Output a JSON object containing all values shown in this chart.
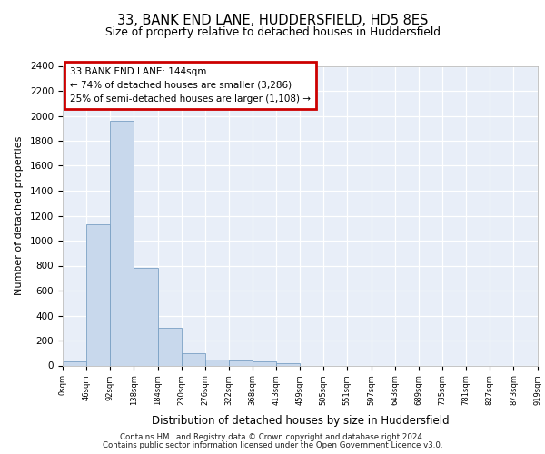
{
  "title1": "33, BANK END LANE, HUDDERSFIELD, HD5 8ES",
  "title2": "Size of property relative to detached houses in Huddersfield",
  "xlabel": "Distribution of detached houses by size in Huddersfield",
  "ylabel": "Number of detached properties",
  "footer1": "Contains HM Land Registry data © Crown copyright and database right 2024.",
  "footer2": "Contains public sector information licensed under the Open Government Licence v3.0.",
  "annotation_line1": "33 BANK END LANE: 144sqm",
  "annotation_line2": "← 74% of detached houses are smaller (3,286)",
  "annotation_line3": "25% of semi-detached houses are larger (1,108) →",
  "bar_color": "#c8d8ec",
  "bar_edge_color": "#7aa0c4",
  "annotation_box_color": "#cc0000",
  "bg_color": "#e8eef8",
  "grid_color": "#ffffff",
  "bin_edges": [
    0,
    46,
    92,
    138,
    184,
    230,
    276,
    322,
    368,
    413,
    459,
    505,
    551,
    597,
    643,
    689,
    735,
    781,
    827,
    873,
    919
  ],
  "bin_labels": [
    "0sqm",
    "46sqm",
    "92sqm",
    "138sqm",
    "184sqm",
    "230sqm",
    "276sqm",
    "322sqm",
    "368sqm",
    "413sqm",
    "459sqm",
    "505sqm",
    "551sqm",
    "597sqm",
    "643sqm",
    "689sqm",
    "735sqm",
    "781sqm",
    "827sqm",
    "873sqm",
    "919sqm"
  ],
  "bar_heights": [
    35,
    1130,
    1960,
    780,
    300,
    100,
    45,
    40,
    30,
    20,
    0,
    0,
    0,
    0,
    0,
    0,
    0,
    0,
    0,
    0
  ],
  "ylim": [
    0,
    2400
  ],
  "yticks": [
    0,
    200,
    400,
    600,
    800,
    1000,
    1200,
    1400,
    1600,
    1800,
    2000,
    2200,
    2400
  ]
}
